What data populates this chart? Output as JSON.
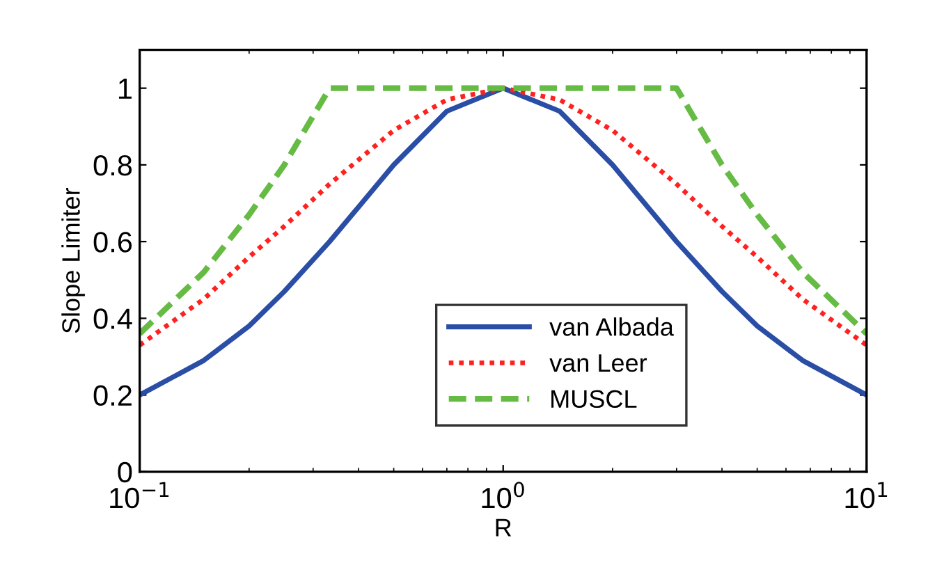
{
  "chart_data": {
    "type": "line",
    "xlabel": "R",
    "ylabel": "Slope Limiter",
    "log": "x",
    "x": [
      0.1,
      0.15,
      0.2,
      0.25,
      0.333,
      0.5,
      0.7,
      1,
      1.43,
      2,
      3,
      4,
      5,
      6.67,
      10
    ],
    "series": [
      {
        "name": "van Albada",
        "color": "#2a4ea6",
        "line_style": "solid",
        "values": [
          0.2,
          0.29,
          0.38,
          0.47,
          0.6,
          0.8,
          0.94,
          1,
          0.94,
          0.8,
          0.6,
          0.47,
          0.38,
          0.29,
          0.2
        ]
      },
      {
        "name": "van Leer",
        "color": "#ff2020",
        "line_style": "dotted",
        "values": [
          0.33,
          0.45,
          0.56,
          0.64,
          0.75,
          0.89,
          0.97,
          1,
          0.97,
          0.89,
          0.75,
          0.64,
          0.56,
          0.45,
          0.33
        ]
      },
      {
        "name": "MUSCL",
        "color": "#66bb44",
        "line_style": "dashed",
        "values": [
          0.36,
          0.52,
          0.67,
          0.8,
          1,
          1,
          1,
          1,
          1,
          1,
          1,
          0.8,
          0.67,
          0.52,
          0.36
        ]
      }
    ],
    "xlim": [
      0.1,
      10
    ],
    "xticks": [
      {
        "value": 0.1,
        "label": "10$^{−1}$"
      },
      {
        "value": 1,
        "label": "10$^{0}$"
      },
      {
        "value": 10,
        "label": "10$^{1}$"
      }
    ],
    "ylim": [
      0,
      1.1
    ],
    "yticks": [
      0,
      0.2,
      0.4,
      0.6,
      0.8,
      1
    ],
    "grid": false,
    "legend": "bottom",
    "marker": "none"
  }
}
